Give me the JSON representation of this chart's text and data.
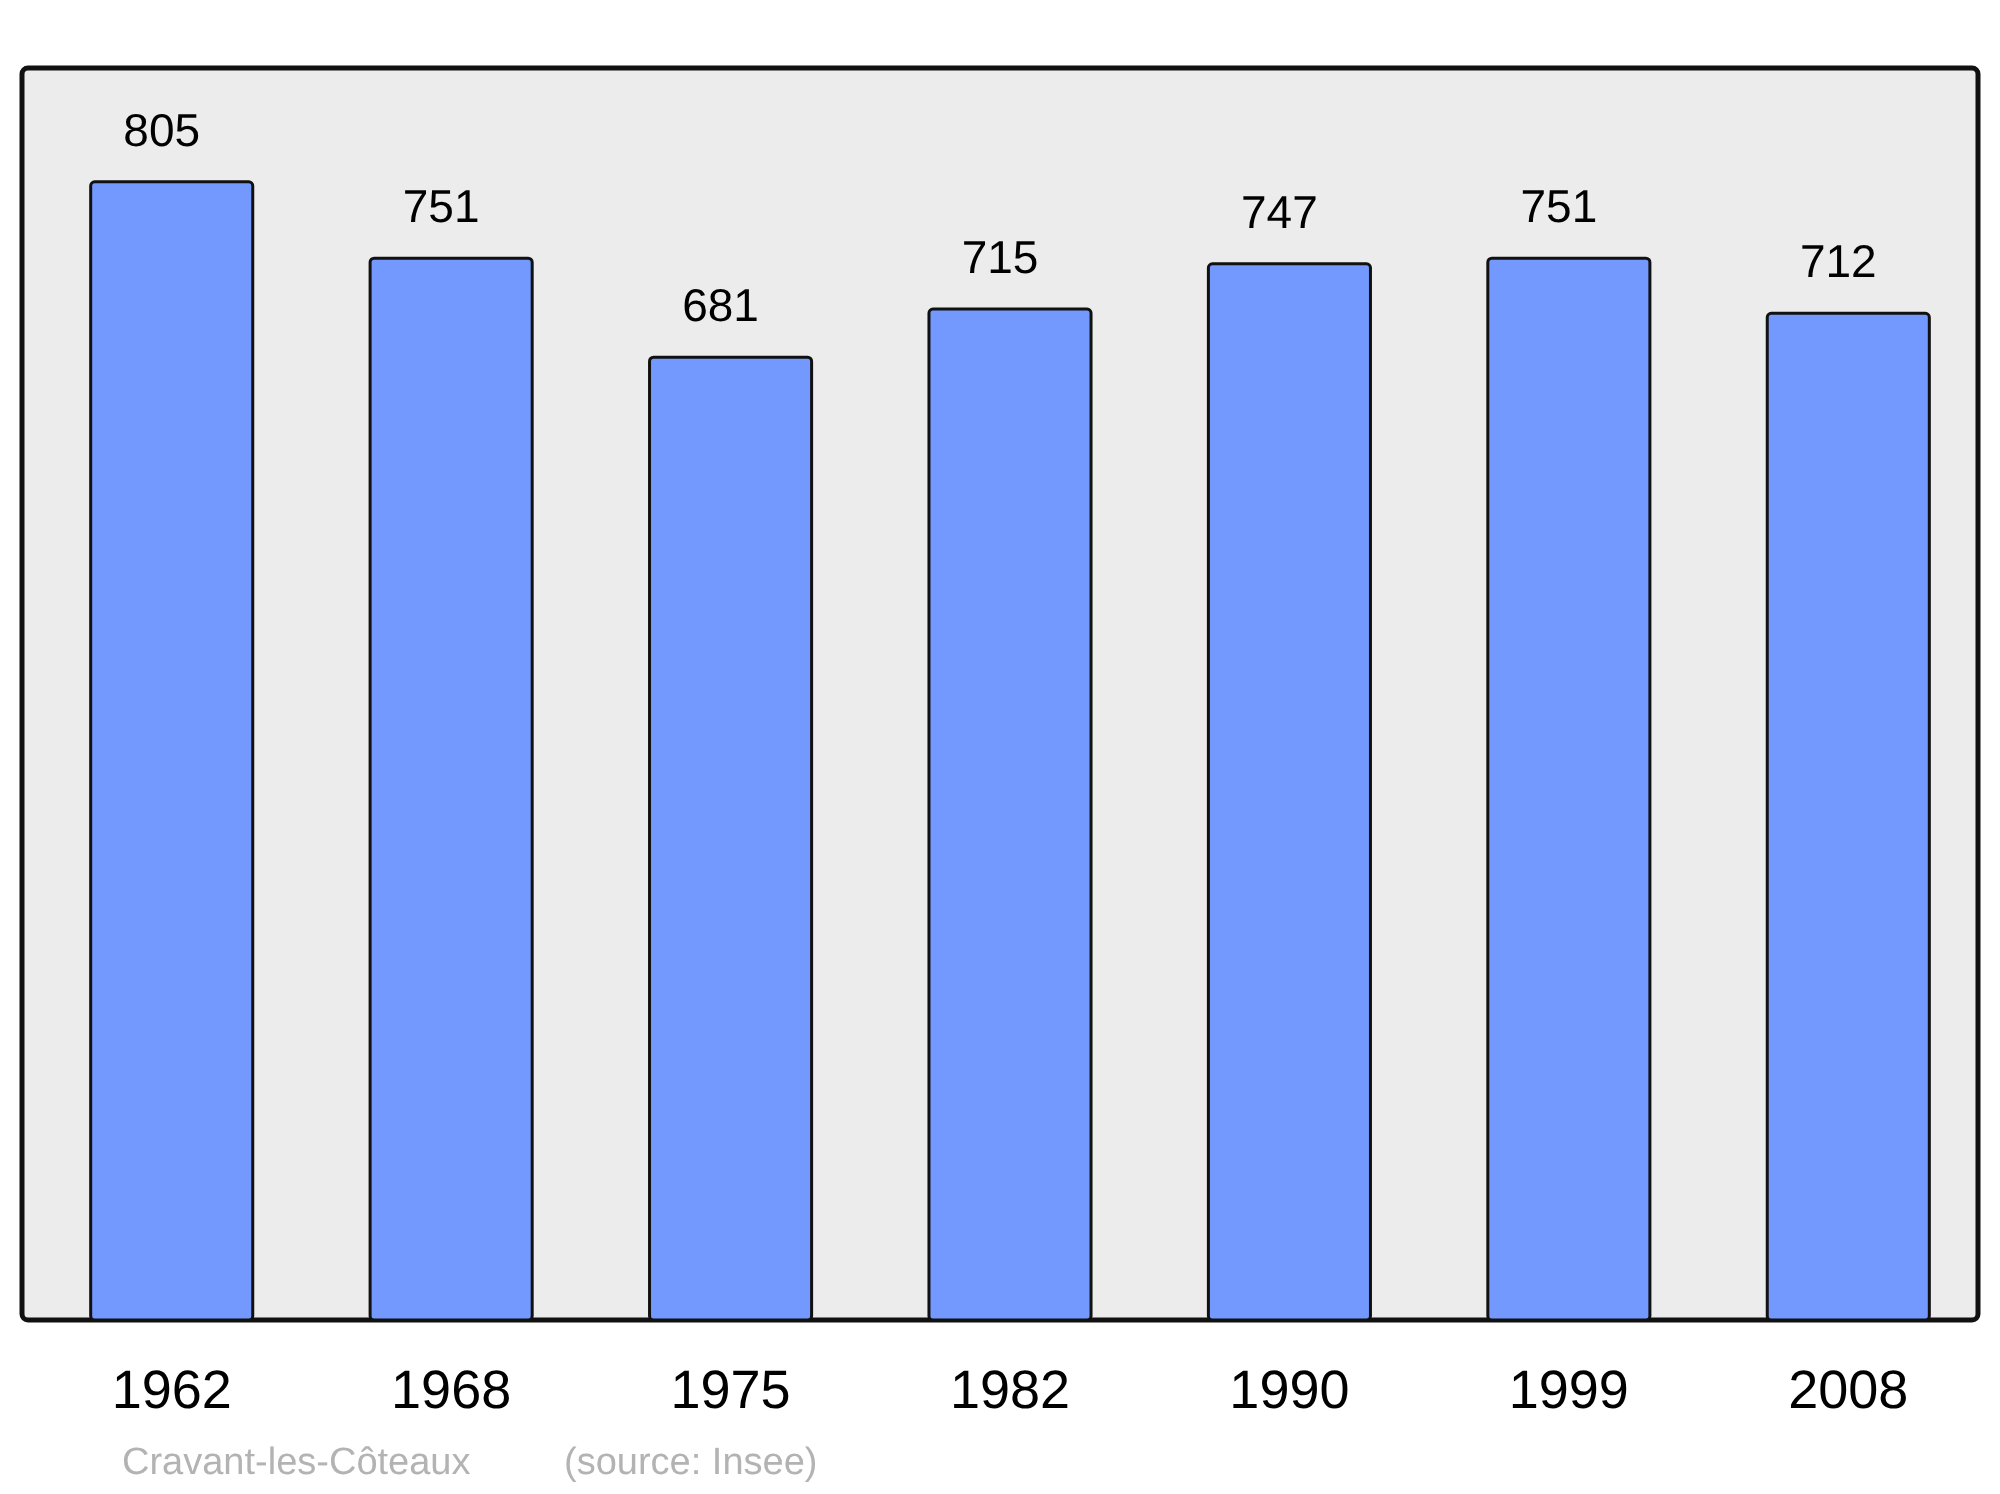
{
  "chart_data": {
    "type": "bar",
    "categories": [
      "1962",
      "1968",
      "1975",
      "1982",
      "1990",
      "1999",
      "2008"
    ],
    "values": [
      805,
      751,
      681,
      715,
      747,
      751,
      712
    ],
    "color": "#7399ff",
    "data_labels": true,
    "annotations": [
      "Cravant-les-Côteaux",
      "(source: Insee)"
    ]
  }
}
